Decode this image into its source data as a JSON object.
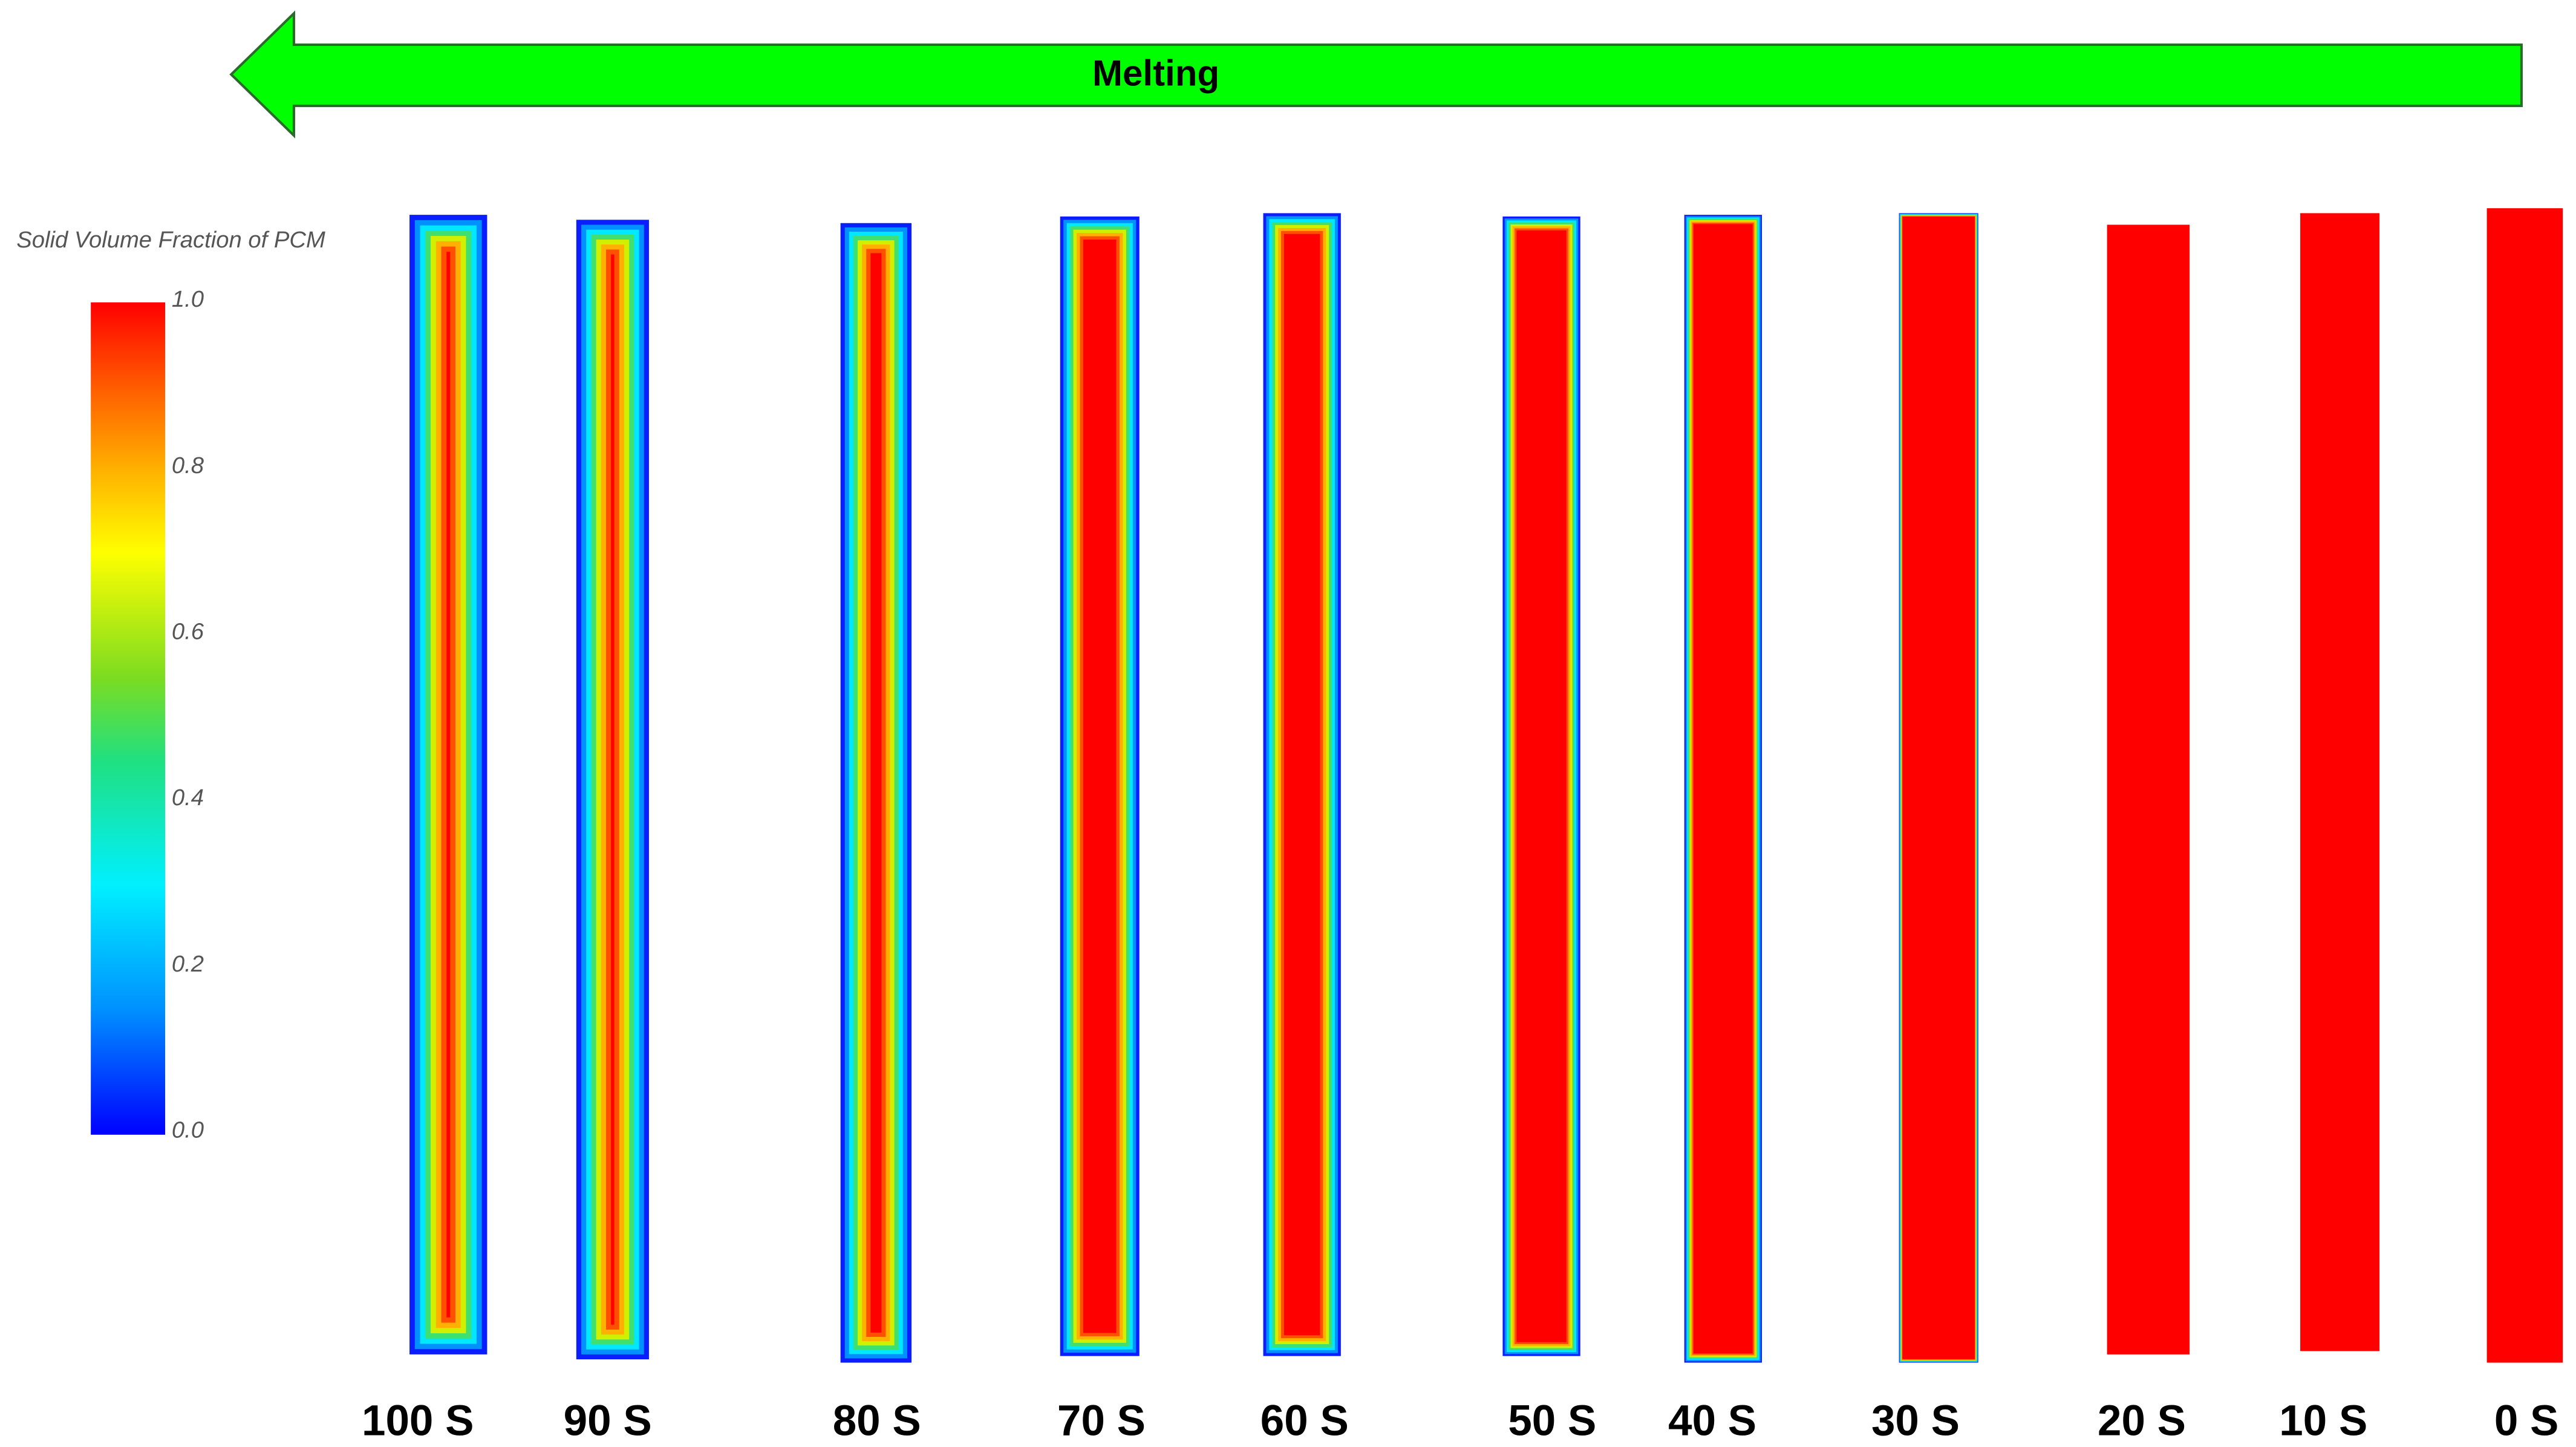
{
  "banner": {
    "label": "Melting"
  },
  "legend": {
    "title": "Solid Volume Fraction of PCM",
    "ticks": [
      "1.0",
      "0.8",
      "0.6",
      "0.4",
      "0.2",
      "0.0"
    ]
  },
  "panels": [
    {
      "label": "100 S"
    },
    {
      "label": "90 S"
    },
    {
      "label": "80 S"
    },
    {
      "label": "70 S"
    },
    {
      "label": "60 S"
    },
    {
      "label": "50 S"
    },
    {
      "label": "40 S"
    },
    {
      "label": "30 S"
    },
    {
      "label": "20 S"
    },
    {
      "label": "10 S"
    },
    {
      "label": "0 S"
    }
  ]
}
